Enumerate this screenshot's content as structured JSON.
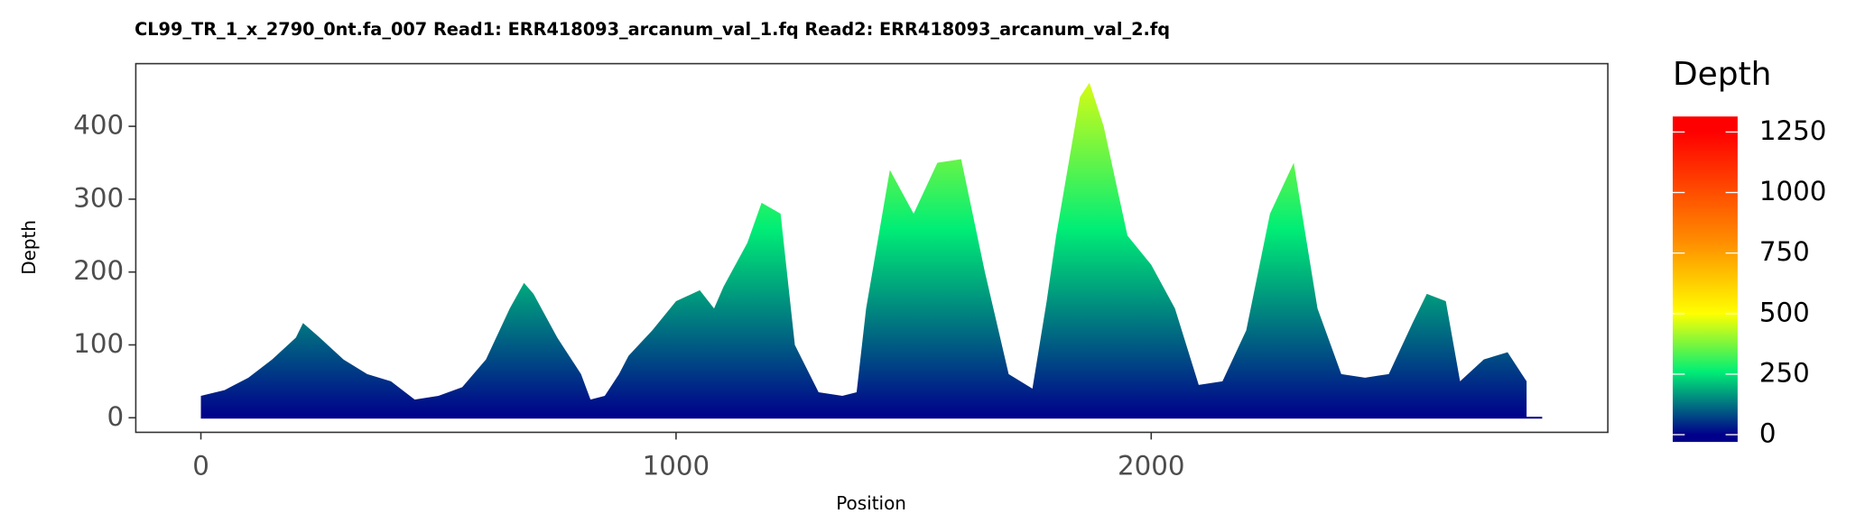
{
  "chart_data": {
    "type": "area",
    "title": "CL99_TR_1_x_2790_0nt.fa_007   Read1: ERR418093_arcanum_val_1.fq   Read2: ERR418093_arcanum_val_2.fq",
    "x_label": "Position",
    "y_label": "Depth",
    "legend_title": "Depth",
    "x": [
      0,
      50,
      100,
      150,
      200,
      215,
      250,
      300,
      350,
      400,
      450,
      500,
      550,
      600,
      650,
      680,
      700,
      750,
      800,
      820,
      850,
      880,
      900,
      950,
      1000,
      1050,
      1080,
      1100,
      1150,
      1180,
      1220,
      1250,
      1300,
      1350,
      1380,
      1400,
      1450,
      1500,
      1550,
      1600,
      1650,
      1700,
      1750,
      1780,
      1800,
      1850,
      1870,
      1900,
      1950,
      2000,
      2050,
      2100,
      2150,
      2200,
      2250,
      2300,
      2350,
      2400,
      2450,
      2500,
      2550,
      2580,
      2620,
      2650,
      2700,
      2750,
      2780,
      2790
    ],
    "values": [
      30,
      38,
      55,
      80,
      110,
      130,
      110,
      80,
      60,
      50,
      25,
      30,
      42,
      80,
      150,
      185,
      170,
      110,
      60,
      25,
      30,
      60,
      85,
      120,
      160,
      175,
      150,
      180,
      240,
      295,
      280,
      100,
      35,
      30,
      35,
      150,
      340,
      280,
      350,
      355,
      200,
      60,
      40,
      160,
      250,
      440,
      460,
      400,
      250,
      210,
      150,
      45,
      50,
      120,
      280,
      350,
      150,
      60,
      55,
      60,
      130,
      170,
      160,
      50,
      80,
      90,
      60,
      50
    ],
    "xlim": [
      -137,
      2961
    ],
    "ylim": [
      -20,
      486
    ],
    "xticks": [
      0,
      1000,
      2000
    ],
    "yticks": [
      0,
      100,
      200,
      300,
      400
    ],
    "legend_ticks": [
      0,
      250,
      500,
      750,
      1000,
      1250
    ],
    "legend_lim": [
      -30,
      1314
    ],
    "gradient": [
      {
        "value": 0,
        "color": "#00008b"
      },
      {
        "value": 260,
        "color": "#00ee76"
      },
      {
        "value": 500,
        "color": "#ffff00"
      },
      {
        "value": 800,
        "color": "#ff8c00"
      },
      {
        "value": 1250,
        "color": "#ff0000"
      }
    ]
  }
}
